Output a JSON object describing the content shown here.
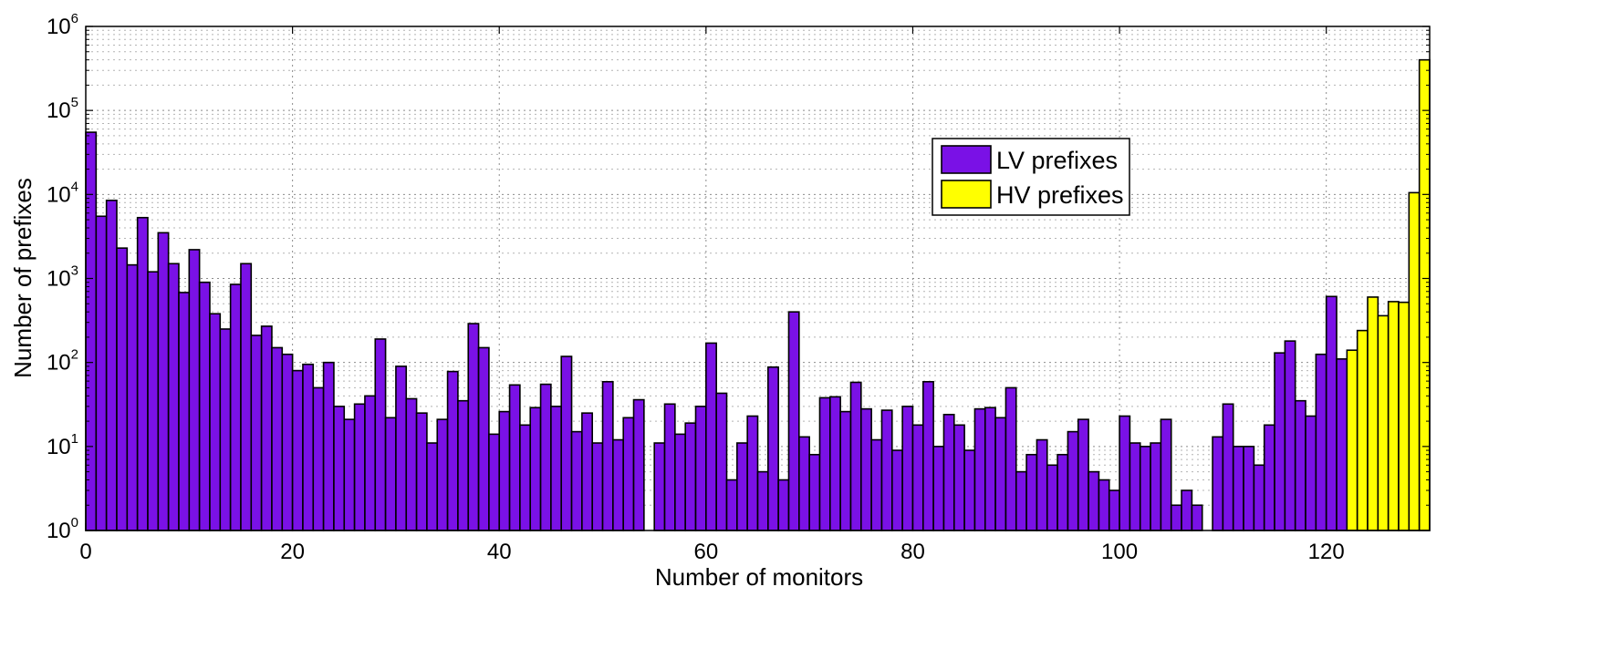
{
  "chart_data": {
    "type": "bar",
    "title": "",
    "xlabel": "Number of monitors",
    "ylabel": "Number of prefixes",
    "yscale": "log",
    "ylim": [
      1,
      1000000
    ],
    "xlim": [
      0,
      130
    ],
    "grid": true,
    "legend_placement": "top-center-right",
    "x_ticks": [
      "0",
      "20",
      "40",
      "60",
      "80",
      "100",
      "120"
    ],
    "y_ticks": [
      {
        "base": "10",
        "exp": "0",
        "value": 1
      },
      {
        "base": "10",
        "exp": "1",
        "value": 10
      },
      {
        "base": "10",
        "exp": "2",
        "value": 100
      },
      {
        "base": "10",
        "exp": "3",
        "value": 1000
      },
      {
        "base": "10",
        "exp": "4",
        "value": 10000
      },
      {
        "base": "10",
        "exp": "5",
        "value": 100000
      },
      {
        "base": "10",
        "exp": "6",
        "value": 1000000
      }
    ],
    "series": [
      {
        "name": "LV prefixes",
        "color": "#7a11e6",
        "x": [
          1,
          2,
          3,
          4,
          5,
          6,
          7,
          8,
          9,
          10,
          11,
          12,
          13,
          14,
          15,
          16,
          17,
          18,
          19,
          20,
          21,
          22,
          23,
          24,
          25,
          26,
          27,
          28,
          29,
          30,
          31,
          32,
          33,
          34,
          35,
          36,
          37,
          38,
          39,
          40,
          41,
          42,
          43,
          44,
          45,
          46,
          47,
          48,
          49,
          50,
          51,
          52,
          53,
          54,
          55,
          56,
          57,
          58,
          59,
          60,
          61,
          62,
          63,
          64,
          65,
          66,
          67,
          68,
          69,
          70,
          71,
          72,
          73,
          74,
          75,
          76,
          77,
          78,
          79,
          80,
          81,
          82,
          83,
          84,
          85,
          86,
          87,
          88,
          89,
          90,
          91,
          92,
          93,
          94,
          95,
          96,
          97,
          98,
          99,
          100,
          101,
          102,
          103,
          104,
          105,
          106,
          107,
          108,
          109,
          110,
          111,
          112,
          113,
          114,
          115,
          116,
          117,
          118,
          119,
          120,
          121,
          122
        ],
        "values": [
          55000,
          5500,
          8500,
          2300,
          1450,
          5300,
          1200,
          3500,
          1500,
          680,
          2200,
          900,
          380,
          250,
          850,
          1500,
          210,
          270,
          150,
          125,
          80,
          95,
          50,
          100,
          30,
          21,
          32,
          40,
          190,
          22,
          90,
          37,
          25,
          11,
          21,
          78,
          35,
          290,
          150,
          14,
          26,
          54,
          18,
          29,
          55,
          30,
          118,
          15,
          25,
          11,
          59,
          12,
          22,
          36,
          1,
          11,
          32,
          14,
          19,
          30,
          170,
          43,
          4,
          11,
          23,
          5,
          88,
          4,
          400,
          13,
          8,
          38,
          39,
          26,
          58,
          28,
          12,
          27,
          9,
          30,
          18,
          59,
          10,
          24,
          18,
          9,
          28,
          29,
          22,
          50,
          5,
          8,
          12,
          6,
          8,
          15,
          21,
          5,
          4,
          3,
          23,
          11,
          10,
          11,
          21,
          2,
          3,
          2,
          1,
          13,
          32,
          10,
          10,
          6,
          18,
          130,
          180,
          35,
          23,
          125,
          610,
          110
        ]
      },
      {
        "name": "HV prefixes",
        "color": "#ffff00",
        "x": [
          123,
          124,
          125,
          126,
          127,
          128,
          129,
          130
        ],
        "values": [
          140,
          240,
          600,
          360,
          530,
          520,
          10500,
          400000
        ]
      }
    ]
  }
}
